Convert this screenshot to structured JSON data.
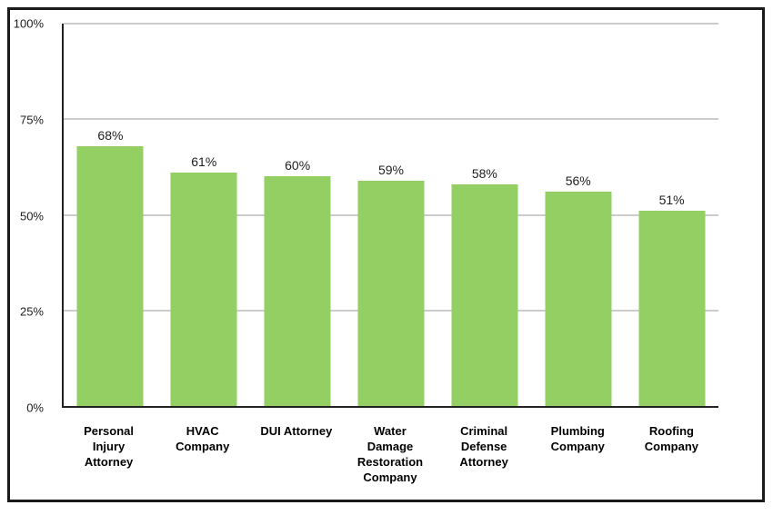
{
  "chart_data": {
    "type": "bar",
    "categories": [
      "Personal Injury Attorney",
      "HVAC Company",
      "DUI Attorney",
      "Water Damage Restoration Company",
      "Criminal Defense Attorney",
      "Plumbing Company",
      "Roofing Company"
    ],
    "values": [
      68,
      61,
      60,
      59,
      58,
      56,
      51
    ],
    "value_labels": [
      "68%",
      "61%",
      "60%",
      "59%",
      "58%",
      "56%",
      "51%"
    ],
    "title": "",
    "xlabel": "",
    "ylabel": "",
    "ylim": [
      0,
      100
    ],
    "y_ticks": [
      {
        "value": 100,
        "label": "100%"
      },
      {
        "value": 75,
        "label": "75%"
      },
      {
        "value": 50,
        "label": "50%"
      },
      {
        "value": 25,
        "label": "25%"
      },
      {
        "value": 0,
        "label": "0%"
      }
    ],
    "grid": true,
    "legend": "none"
  },
  "colors": {
    "bar_fill": "#93CF63",
    "gridline": "#CCCCCC",
    "axis": "#222222",
    "frame_border": "#1A1A1A",
    "background": "#FFFFFF",
    "value_text": "#212121",
    "category_text": "#000000"
  }
}
